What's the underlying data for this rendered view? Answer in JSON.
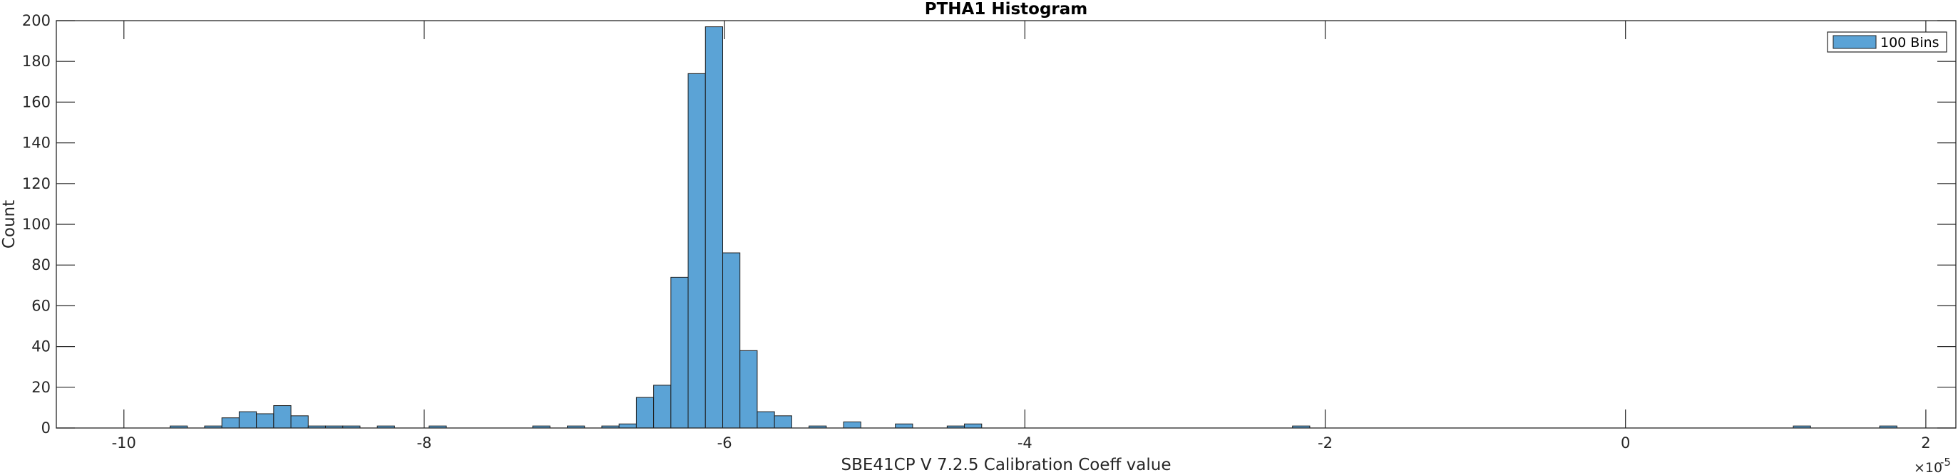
{
  "chart_data": {
    "type": "bar",
    "title": "PTHA1 Histogram",
    "xlabel": "SBE41CP V 7.2.5 Calibration Coeff value",
    "ylabel": "Count",
    "x_multiplier_base": "×10",
    "x_multiplier_exp": "-5",
    "xlim": [
      -10.45,
      2.2
    ],
    "ylim": [
      0,
      200
    ],
    "xticks": [
      -10,
      -8,
      -6,
      -4,
      -2,
      0,
      2
    ],
    "xtick_labels": [
      "-10",
      "-8",
      "-6",
      "-4",
      "-2",
      "0",
      "2"
    ],
    "yticks": [
      0,
      20,
      40,
      60,
      80,
      100,
      120,
      140,
      160,
      180,
      200
    ],
    "ytick_labels": [
      "0",
      "20",
      "40",
      "60",
      "80",
      "100",
      "120",
      "140",
      "160",
      "180",
      "200"
    ],
    "legend": {
      "label": "100 Bins",
      "location": "top-right"
    },
    "bin_width": 0.115,
    "bar_color": "#5ba3d6",
    "bar_edge_color": "#1f1f1f",
    "bins": [
      {
        "x": -9.635,
        "count": 1
      },
      {
        "x": -9.405,
        "count": 1
      },
      {
        "x": -9.29,
        "count": 5
      },
      {
        "x": -9.175,
        "count": 8
      },
      {
        "x": -9.06,
        "count": 7
      },
      {
        "x": -8.945,
        "count": 11
      },
      {
        "x": -8.83,
        "count": 6
      },
      {
        "x": -8.715,
        "count": 1
      },
      {
        "x": -8.6,
        "count": 1
      },
      {
        "x": -8.485,
        "count": 1
      },
      {
        "x": -8.255,
        "count": 1
      },
      {
        "x": -7.91,
        "count": 1
      },
      {
        "x": -7.22,
        "count": 1
      },
      {
        "x": -6.99,
        "count": 1
      },
      {
        "x": -6.76,
        "count": 1
      },
      {
        "x": -6.645,
        "count": 2
      },
      {
        "x": -6.53,
        "count": 15
      },
      {
        "x": -6.415,
        "count": 21
      },
      {
        "x": -6.3,
        "count": 74
      },
      {
        "x": -6.185,
        "count": 174
      },
      {
        "x": -6.07,
        "count": 197
      },
      {
        "x": -5.955,
        "count": 86
      },
      {
        "x": -5.84,
        "count": 38
      },
      {
        "x": -5.725,
        "count": 8
      },
      {
        "x": -5.61,
        "count": 6
      },
      {
        "x": -5.38,
        "count": 1
      },
      {
        "x": -5.15,
        "count": 3
      },
      {
        "x": -4.805,
        "count": 2
      },
      {
        "x": -4.46,
        "count": 1
      },
      {
        "x": -4.345,
        "count": 2
      },
      {
        "x": -2.16,
        "count": 1
      },
      {
        "x": 1.175,
        "count": 1
      },
      {
        "x": 1.75,
        "count": 1
      }
    ]
  }
}
